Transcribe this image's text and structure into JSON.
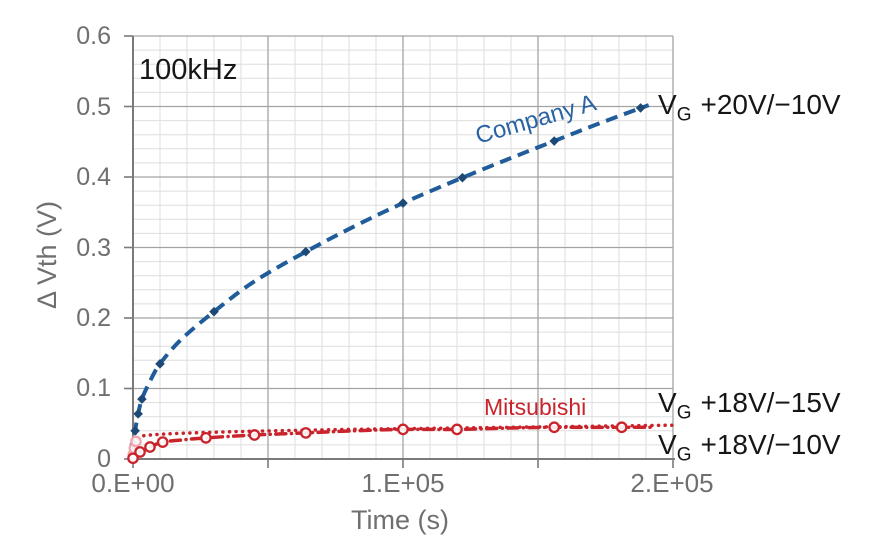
{
  "labels": {
    "annotation": "100kHz",
    "company_a": "Company A",
    "mitsubishi": "Mitsubishi"
  },
  "chart_data": {
    "type": "line",
    "title": "",
    "xlabel": "Time (s)",
    "ylabel": "Δ Vth (V)",
    "xlim": [
      0,
      200000
    ],
    "ylim": [
      0,
      0.6
    ],
    "x_minor_step": 10000,
    "x_major_step": 50000,
    "y_minor_step": 0.02,
    "y_major_step": 0.1,
    "grid": true,
    "legend_position": "inline-labels",
    "x_ticks": [
      {
        "value": 0,
        "label": "0.E+00"
      },
      {
        "value": 100000,
        "label": "1.E+05"
      },
      {
        "value": 200000,
        "label": "2.E+05"
      }
    ],
    "y_ticks": [
      {
        "value": 0.6,
        "label": "0.6"
      },
      {
        "value": 0.5,
        "label": "0.5"
      },
      {
        "value": 0.4,
        "label": "0.4"
      },
      {
        "value": 0.3,
        "label": "0.3"
      },
      {
        "value": 0.2,
        "label": "0.2"
      },
      {
        "value": 0.1,
        "label": "0.1"
      },
      {
        "value": 0,
        "label": "0"
      }
    ],
    "series": [
      {
        "name": "Company A",
        "condition": "VG +20V/−10V",
        "color": "#1f5c99",
        "marker_color": "#1d4976",
        "line_style": "dashed",
        "marker": "diamond",
        "points": [
          [
            0,
            0.008
          ],
          [
            400,
            0.021
          ],
          [
            800,
            0.04
          ],
          [
            1900,
            0.064
          ],
          [
            3300,
            0.085
          ],
          [
            6000,
            0.108
          ],
          [
            10000,
            0.135
          ],
          [
            18000,
            0.17
          ],
          [
            30000,
            0.209
          ],
          [
            45000,
            0.252
          ],
          [
            64000,
            0.294
          ],
          [
            82000,
            0.33
          ],
          [
            100000,
            0.363
          ],
          [
            122000,
            0.399
          ],
          [
            140000,
            0.427
          ],
          [
            156000,
            0.451
          ],
          [
            172000,
            0.475
          ],
          [
            191000,
            0.502
          ]
        ],
        "markers": [
          [
            400,
            0.021
          ],
          [
            800,
            0.04
          ],
          [
            1900,
            0.064
          ],
          [
            3300,
            0.085
          ],
          [
            10000,
            0.135
          ],
          [
            30000,
            0.209
          ],
          [
            64000,
            0.294
          ],
          [
            100000,
            0.363
          ],
          [
            122000,
            0.399
          ],
          [
            156000,
            0.451
          ],
          [
            188000,
            0.498
          ]
        ]
      },
      {
        "name": "Mitsubishi",
        "condition": "VG +18V/−15V",
        "color": "#c9242c",
        "marker_color": "#f2a6b0",
        "line_style": "dotted",
        "marker": "circle",
        "points": [
          [
            0,
            0.002
          ],
          [
            500,
            0.012
          ],
          [
            1200,
            0.024
          ],
          [
            2500,
            0.031
          ],
          [
            5000,
            0.0335
          ],
          [
            15000,
            0.036
          ],
          [
            40000,
            0.039
          ],
          [
            80000,
            0.042
          ],
          [
            120000,
            0.044
          ],
          [
            160000,
            0.046
          ],
          [
            200000,
            0.048
          ]
        ],
        "markers": [
          [
            100,
            0.006
          ],
          [
            500,
            0.015
          ],
          [
            1100,
            0.025
          ]
        ]
      },
      {
        "name": "Mitsubishi",
        "condition": "VG +18V/−10V",
        "color": "#c9242c",
        "marker_color": "#c9242c",
        "line_style": "dashdot",
        "marker": "circle",
        "points": [
          [
            0,
            0.001
          ],
          [
            2600,
            0.01
          ],
          [
            6300,
            0.017
          ],
          [
            11000,
            0.024
          ],
          [
            18000,
            0.027
          ],
          [
            27000,
            0.03
          ],
          [
            45000,
            0.034
          ],
          [
            64000,
            0.037
          ],
          [
            82000,
            0.04
          ],
          [
            100000,
            0.042
          ],
          [
            120000,
            0.042
          ],
          [
            140000,
            0.044
          ],
          [
            156000,
            0.045
          ],
          [
            170000,
            0.0448
          ],
          [
            181000,
            0.045
          ],
          [
            192000,
            0.045
          ]
        ],
        "markers": [
          [
            0,
            0.001
          ],
          [
            2600,
            0.01
          ],
          [
            6300,
            0.017
          ],
          [
            11000,
            0.024
          ],
          [
            27000,
            0.03
          ],
          [
            45000,
            0.034
          ],
          [
            64000,
            0.037
          ],
          [
            100000,
            0.042
          ],
          [
            120000,
            0.042
          ],
          [
            156000,
            0.045
          ],
          [
            181000,
            0.045
          ]
        ]
      }
    ],
    "gate_labels": [
      {
        "base": "V",
        "sub": "G",
        "value": "+20V/−10V"
      },
      {
        "base": "V",
        "sub": "G",
        "value": "+18V/−15V"
      },
      {
        "base": "V",
        "sub": "G",
        "value": "+18V/−10V"
      }
    ],
    "style": {
      "grid_minor_color": "#dedede",
      "grid_major_color": "#a3a3a3",
      "axis_color": "#7a7a7a",
      "text_color": "#6f6f6f",
      "annotation_color": "#161616"
    }
  }
}
